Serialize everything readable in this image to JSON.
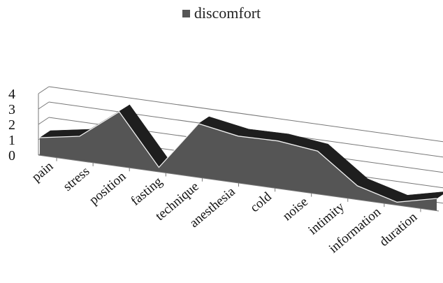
{
  "chart_data": {
    "type": "area",
    "style": "3d",
    "categories": [
      "pain",
      "stress",
      "position",
      "fasting",
      "technique",
      "anesthesia",
      "cold",
      "noise",
      "intimity",
      "information",
      "duration"
    ],
    "series": [
      {
        "name": "discomfort",
        "values": [
          1.15,
          1.6,
          3.55,
          0.3,
          3.5,
          3.05,
          3.1,
          2.8,
          0.9,
          0.2,
          0.8
        ],
        "color": "#555555"
      }
    ],
    "yticks": [
      "0",
      "1",
      "2",
      "3",
      "4"
    ],
    "ylim": [
      0,
      4
    ],
    "grid": true,
    "legend_position": "top"
  }
}
